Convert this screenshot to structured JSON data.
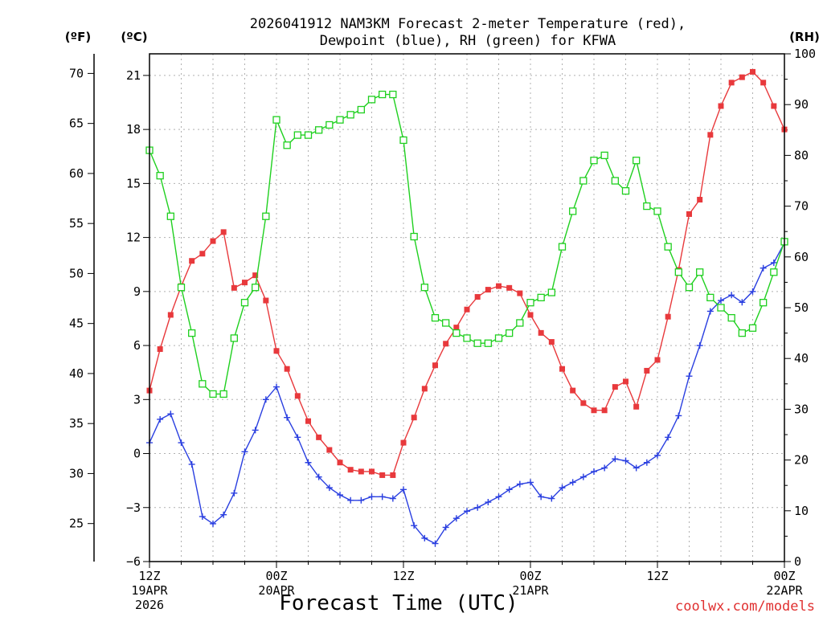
{
  "title": {
    "line1": "2026041912 NAM3KM Forecast 2-meter Temperature (red),",
    "line2": "Dewpoint (blue), RH (green) for KFWA"
  },
  "axes": {
    "f_unit": "(ºF)",
    "c_unit": "(ºC)",
    "rh_unit": "(RH)",
    "xlabel": "Forecast Time (UTC)",
    "credit": "coolwx.com/models",
    "c_ticks": [
      "21",
      "18",
      "15",
      "12",
      "9",
      "6",
      "3",
      "0",
      "−3",
      "−6"
    ],
    "f_ticks": [
      "70",
      "65",
      "60",
      "55",
      "50",
      "45",
      "40",
      "35",
      "30",
      "25"
    ],
    "rh_ticks": [
      "100",
      "90",
      "80",
      "70",
      "60",
      "50",
      "40",
      "30",
      "20",
      "10",
      "0"
    ],
    "x_ticks": [
      {
        "hour": 0,
        "lines": [
          "12Z",
          "19APR",
          "2026"
        ]
      },
      {
        "hour": 12,
        "lines": [
          "00Z",
          "20APR"
        ]
      },
      {
        "hour": 24,
        "lines": [
          "12Z"
        ]
      },
      {
        "hour": 36,
        "lines": [
          "00Z",
          "21APR"
        ]
      },
      {
        "hour": 48,
        "lines": [
          "12Z"
        ]
      },
      {
        "hour": 60,
        "lines": [
          "00Z",
          "22APR"
        ]
      }
    ]
  },
  "colors": {
    "temperature": "#e8393c",
    "dewpoint": "#2a3fe0",
    "rh": "#1fd01f",
    "credit": "#e03030"
  },
  "chart_data": {
    "type": "line",
    "title": "2026041912 NAM3KM Forecast 2-meter Temperature (red), Dewpoint (blue), RH (green) for KFWA",
    "xlabel": "Forecast Time (UTC)",
    "ylabel_left_c": "(ºC)",
    "ylabel_left_f": "(ºF)",
    "ylabel_right": "(RH)",
    "x_unit": "forecast hour",
    "xlim": [
      0,
      60
    ],
    "ylim_c": [
      -6,
      22.2
    ],
    "ylim_rh": [
      0,
      100
    ],
    "x": [
      0,
      1,
      2,
      3,
      4,
      5,
      6,
      7,
      8,
      9,
      10,
      11,
      12,
      13,
      14,
      15,
      16,
      17,
      18,
      19,
      20,
      21,
      22,
      23,
      24,
      25,
      26,
      27,
      28,
      29,
      30,
      31,
      32,
      33,
      34,
      35,
      36,
      37,
      38,
      39,
      40,
      41,
      42,
      43,
      44,
      45,
      46,
      47,
      48,
      49,
      50,
      51,
      52,
      53,
      54,
      55,
      56,
      57,
      58,
      59,
      60
    ],
    "series": [
      {
        "name": "Temperature (°C)",
        "color_key": "temperature",
        "marker": "filled-square",
        "axis": "c",
        "values": [
          3.5,
          5.8,
          7.7,
          9.3,
          10.7,
          11.1,
          11.8,
          12.3,
          9.2,
          9.5,
          9.9,
          8.5,
          5.7,
          4.7,
          3.2,
          1.8,
          0.9,
          0.2,
          -0.5,
          -0.9,
          -1.0,
          -1.0,
          -1.2,
          -1.2,
          0.6,
          2.0,
          3.6,
          4.9,
          6.1,
          7.0,
          8.0,
          8.7,
          9.1,
          9.3,
          9.2,
          8.9,
          7.7,
          6.7,
          6.2,
          4.7,
          3.5,
          2.8,
          2.4,
          2.4,
          3.7,
          4.0,
          2.6,
          4.6,
          5.2,
          7.6,
          10.2,
          13.3,
          14.1,
          17.7,
          19.3,
          20.6,
          20.9,
          21.2,
          20.6,
          19.3,
          18.0
        ]
      },
      {
        "name": "Dewpoint (°C)",
        "color_key": "dewpoint",
        "marker": "plus",
        "axis": "c",
        "values": [
          0.6,
          1.9,
          2.2,
          0.6,
          -0.6,
          -3.5,
          -3.9,
          -3.4,
          -2.2,
          0.1,
          1.3,
          3.0,
          3.7,
          2.0,
          0.9,
          -0.5,
          -1.3,
          -1.9,
          -2.3,
          -2.6,
          -2.6,
          -2.4,
          -2.4,
          -2.5,
          -2.0,
          -4.0,
          -4.7,
          -5.0,
          -4.1,
          -3.6,
          -3.2,
          -3.0,
          -2.7,
          -2.4,
          -2.0,
          -1.7,
          -1.6,
          -2.4,
          -2.5,
          -1.9,
          -1.6,
          -1.3,
          -1.0,
          -0.8,
          -0.3,
          -0.4,
          -0.8,
          -0.5,
          -0.1,
          0.9,
          2.1,
          4.3,
          6.0,
          7.9,
          8.5,
          8.8,
          8.4,
          9.0,
          10.3,
          10.6,
          11.7
        ]
      },
      {
        "name": "RH (%)",
        "color_key": "rh",
        "marker": "open-square",
        "axis": "rh",
        "values": [
          81,
          76,
          68,
          54,
          45,
          35,
          33,
          33,
          44,
          51,
          54,
          68,
          87,
          82,
          84,
          84,
          85,
          86,
          87,
          88,
          89,
          91,
          92,
          92,
          83,
          64,
          54,
          48,
          47,
          45,
          44,
          43,
          43,
          44,
          45,
          47,
          51,
          52,
          53,
          62,
          69,
          75,
          79,
          80,
          75,
          73,
          79,
          70,
          69,
          62,
          57,
          54,
          57,
          52,
          50,
          48,
          45,
          46,
          51,
          57,
          63
        ]
      }
    ]
  }
}
